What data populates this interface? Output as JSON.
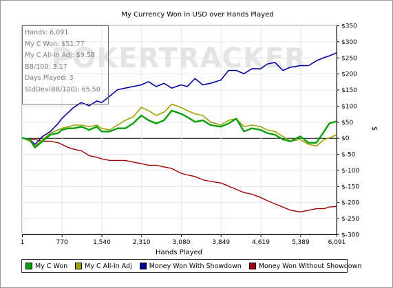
{
  "chart_data": {
    "type": "line",
    "title": "My Currency Won in USD over Hands Played",
    "xlabel": "Hands Played",
    "ylabel": "$",
    "xlim": [
      1,
      6091
    ],
    "ylim": [
      -300,
      350
    ],
    "x_ticks": [
      1,
      770,
      1540,
      2310,
      3080,
      3849,
      4619,
      5389,
      6091
    ],
    "x_tick_labels": [
      "1",
      "770",
      "1,540",
      "2,310",
      "3,080",
      "3,849",
      "4,619",
      "5,389",
      "6,091"
    ],
    "y_ticks": [
      -300,
      -250,
      -200,
      -150,
      -100,
      -50,
      0,
      50,
      100,
      150,
      200,
      250,
      300,
      350
    ],
    "y_tick_labels": [
      "$-300",
      "$-250",
      "$-200",
      "$-150",
      "$-100",
      "$-50",
      "$0",
      "$50",
      "$100",
      "$150",
      "$200",
      "$250",
      "$300",
      "$350"
    ],
    "grid": true,
    "legend_position": "bottom",
    "watermark": "POKERTRACKER",
    "stats": [
      "Hands: 6,091",
      "My C Won: $51.77",
      "My C All-In Adj: $9.58",
      "BB/100: 3.17",
      "Days Played: 3",
      "StdDev(BB/100): 65.50"
    ],
    "x": [
      1,
      150,
      250,
      400,
      550,
      700,
      770,
      900,
      1000,
      1150,
      1300,
      1450,
      1540,
      1700,
      1850,
      2000,
      2150,
      2310,
      2450,
      2600,
      2750,
      2900,
      3080,
      3200,
      3350,
      3500,
      3650,
      3849,
      4000,
      4150,
      4300,
      4450,
      4619,
      4750,
      4900,
      5050,
      5200,
      5389,
      5550,
      5700,
      5850,
      5950,
      6091
    ],
    "series": [
      {
        "name": "My C Won",
        "color": "#00a000",
        "values": [
          0,
          -5,
          -30,
          -10,
          10,
          15,
          25,
          30,
          30,
          35,
          25,
          35,
          20,
          20,
          30,
          30,
          45,
          70,
          55,
          45,
          55,
          85,
          75,
          65,
          50,
          55,
          40,
          35,
          45,
          60,
          20,
          30,
          25,
          15,
          10,
          -5,
          -10,
          5,
          -15,
          -15,
          20,
          45,
          52
        ]
      },
      {
        "name": "My C All-In Adj",
        "color": "#a0a000",
        "values": [
          0,
          -10,
          -25,
          -5,
          15,
          25,
          30,
          35,
          40,
          40,
          35,
          40,
          30,
          25,
          40,
          55,
          65,
          95,
          85,
          70,
          80,
          105,
          95,
          85,
          75,
          70,
          50,
          40,
          55,
          60,
          35,
          40,
          35,
          25,
          20,
          5,
          -10,
          -5,
          -20,
          -25,
          -5,
          0,
          10
        ]
      },
      {
        "name": "Money Won With Showdown",
        "color": "#0000a0",
        "values": [
          0,
          -5,
          -20,
          5,
          20,
          45,
          60,
          80,
          95,
          110,
          100,
          115,
          110,
          130,
          150,
          155,
          160,
          165,
          175,
          160,
          170,
          155,
          165,
          160,
          185,
          165,
          170,
          180,
          210,
          210,
          200,
          215,
          215,
          230,
          235,
          210,
          220,
          225,
          225,
          240,
          250,
          255,
          265
        ]
      },
      {
        "name": "Money Won Without Showdown",
        "color": "#a00000",
        "values": [
          0,
          -5,
          -5,
          -10,
          -10,
          -15,
          -20,
          -30,
          -35,
          -40,
          -55,
          -60,
          -65,
          -70,
          -70,
          -70,
          -75,
          -80,
          -85,
          -85,
          -90,
          -95,
          -110,
          -115,
          -120,
          -130,
          -135,
          -140,
          -150,
          -160,
          -170,
          -175,
          -185,
          -195,
          -205,
          -215,
          -225,
          -230,
          -225,
          -220,
          -220,
          -215,
          -213
        ]
      }
    ]
  }
}
